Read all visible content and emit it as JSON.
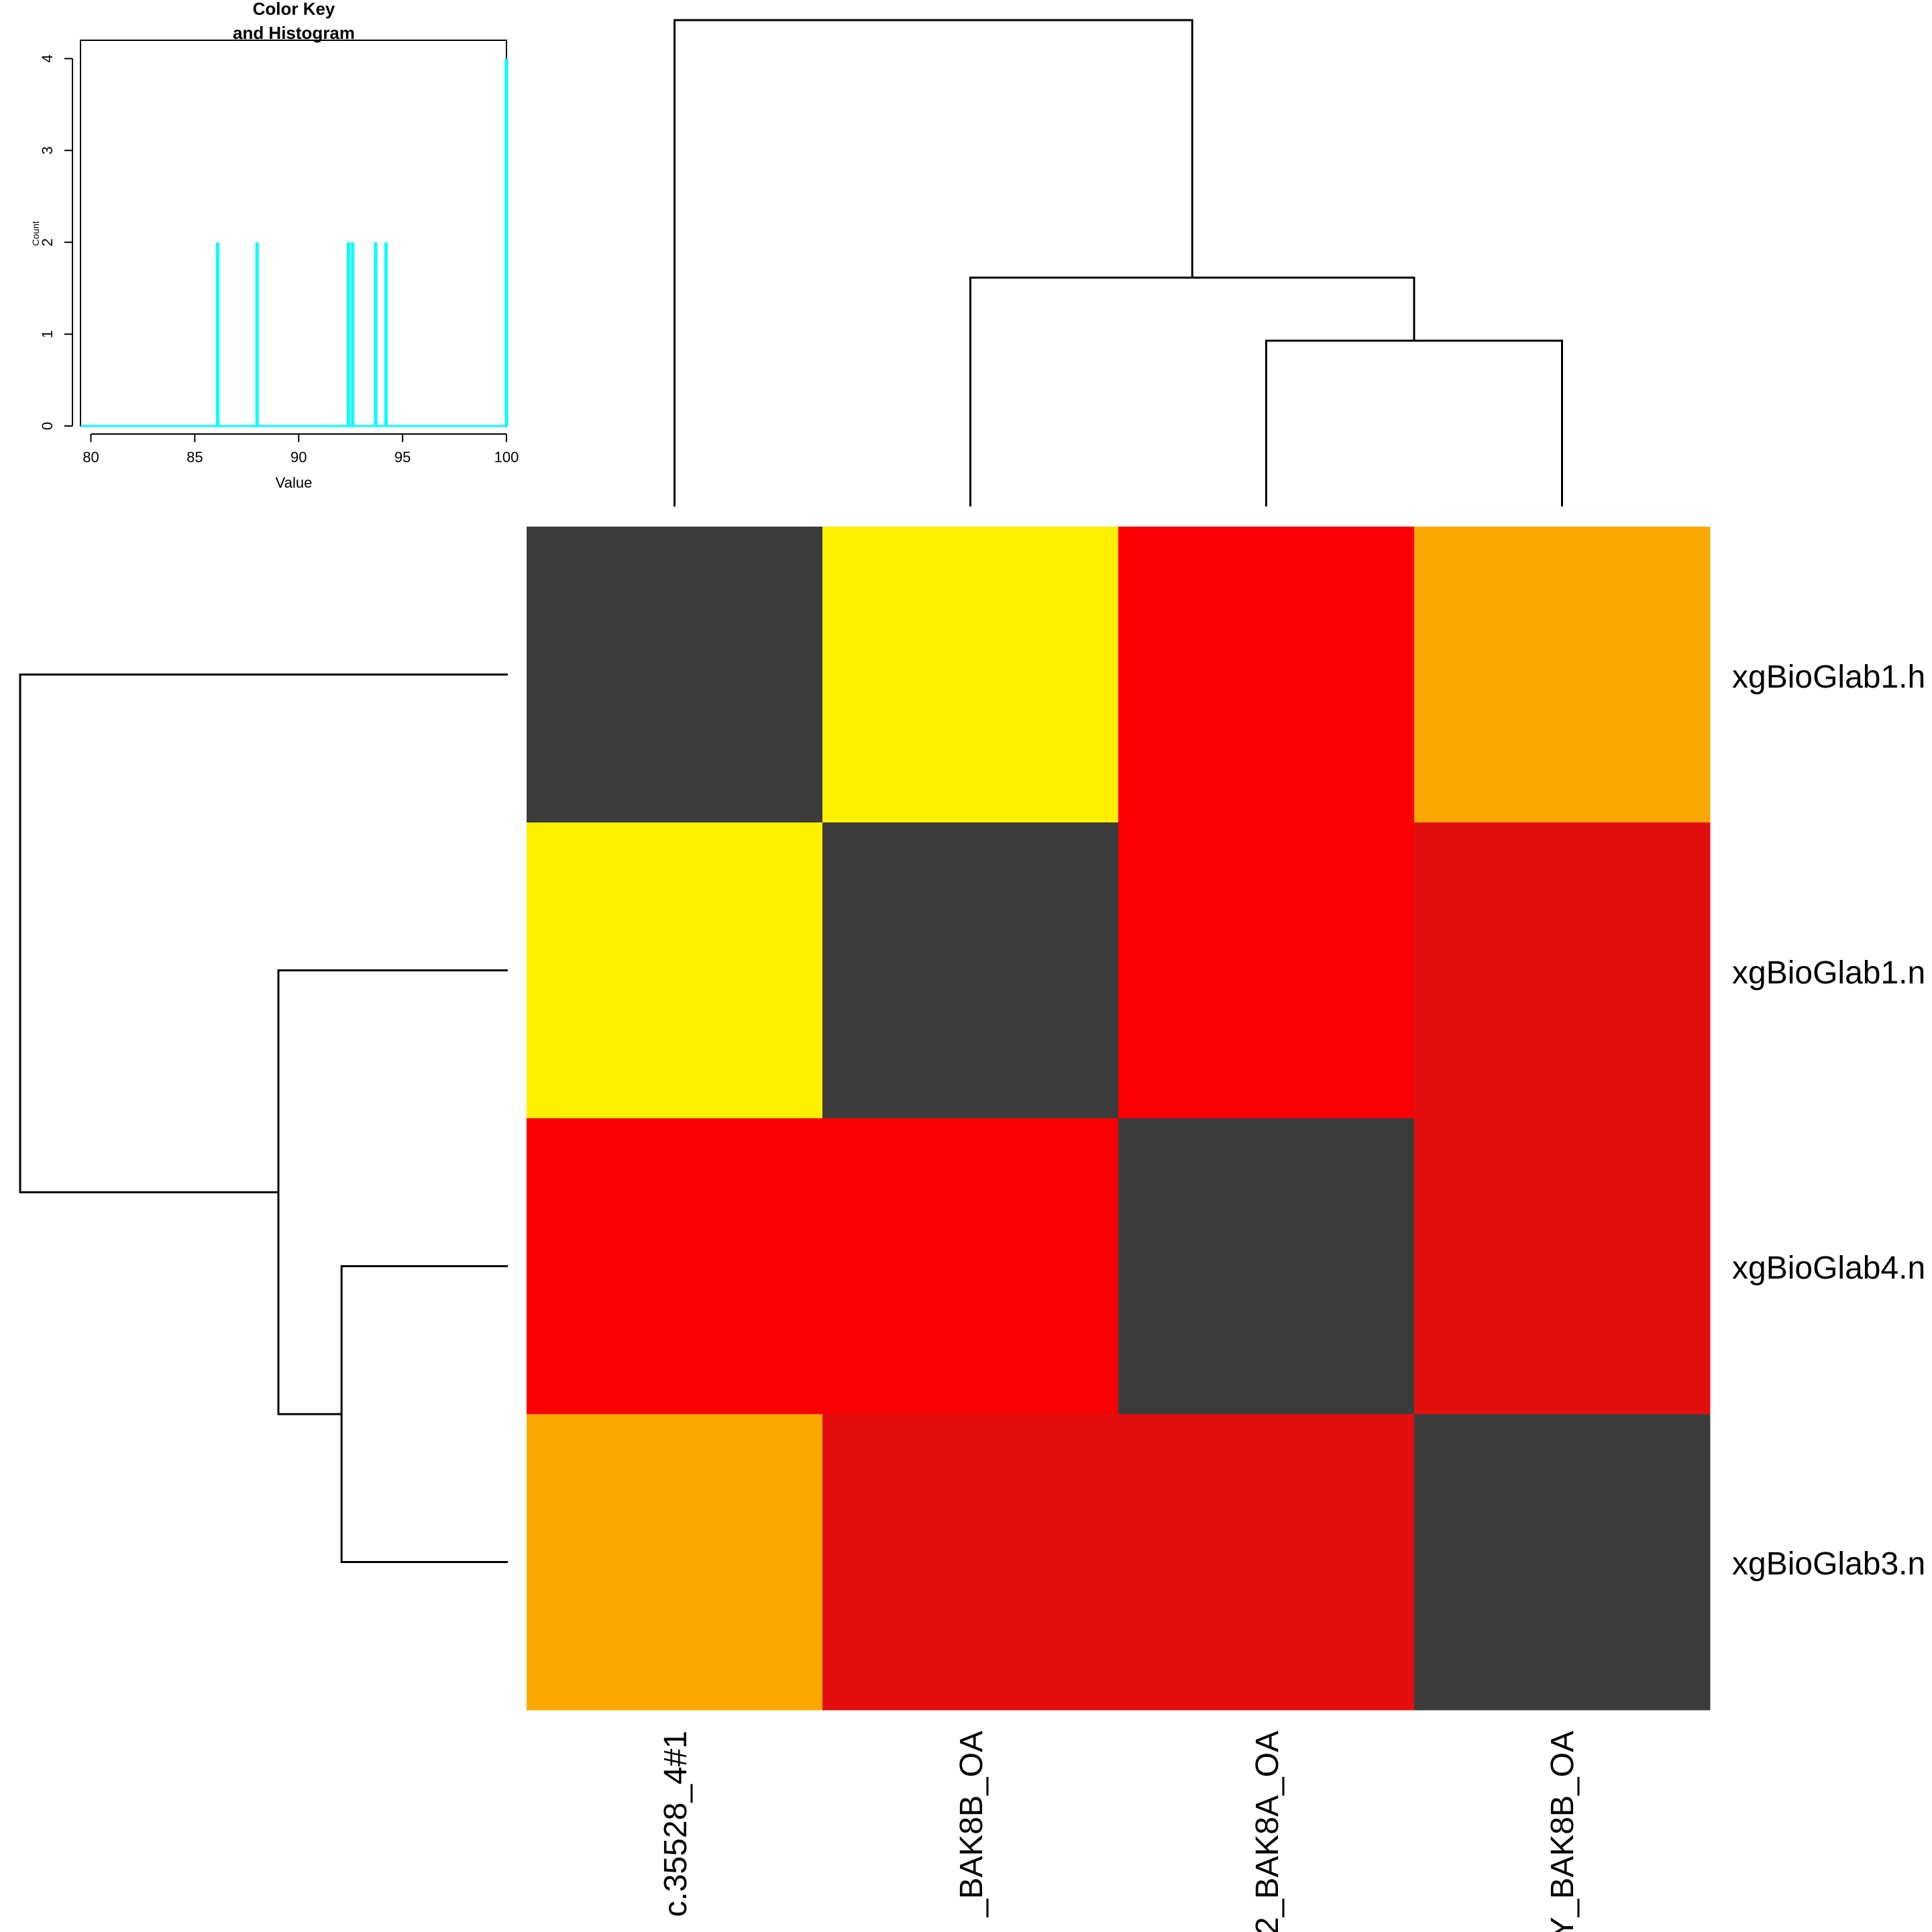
{
  "chart_data": [
    {
      "type": "histogram",
      "title": "Color Key",
      "subtitle": "and Histogram",
      "xlabel": "Value",
      "ylabel": "Count",
      "xlim": [
        79.5,
        100
      ],
      "ylim": [
        0,
        4.2
      ],
      "xticks": [
        80,
        85,
        90,
        95,
        100
      ],
      "yticks": [
        0,
        1,
        2,
        3,
        4
      ],
      "bars": [
        {
          "x": 86.1,
          "count": 2
        },
        {
          "x": 88.0,
          "count": 2
        },
        {
          "x": 92.4,
          "count": 2
        },
        {
          "x": 92.6,
          "count": 2
        },
        {
          "x": 93.7,
          "count": 2
        },
        {
          "x": 94.2,
          "count": 2
        },
        {
          "x": 100.0,
          "count": 4
        }
      ],
      "baseline_range": [
        79.5,
        100
      ],
      "bar_color": "#00ffff"
    },
    {
      "type": "heatmap",
      "row_labels": [
        "xgBioGlab1.h",
        "xgBioGlab1.n",
        "xgBioGlab4.n",
        "xgBioGlab3.n"
      ],
      "col_labels": [
        "c.35528_4#1",
        "_BAK8B_OA",
        "_BAK8A_OA",
        "_BAK8B_OA"
      ],
      "col_label_prefixes": [
        "",
        "",
        "2",
        "Y"
      ],
      "colors": [
        [
          "#3c3c3c",
          "#fff000",
          "#fa0000",
          "#fca800"
        ],
        [
          "#fff000",
          "#3c3c3c",
          "#fa0000",
          "#e30f0f"
        ],
        [
          "#fa0000",
          "#fa0000",
          "#3c3c3c",
          "#e30f0f"
        ],
        [
          "#fca800",
          "#e30f0f",
          "#e30f0f",
          "#3c3c3c"
        ]
      ],
      "values": [
        [
          100,
          86.1,
          92.4,
          88.0
        ],
        [
          86.1,
          100,
          92.6,
          94.2
        ],
        [
          92.4,
          92.6,
          100,
          93.7
        ],
        [
          88.0,
          94.2,
          93.7,
          100
        ]
      ],
      "column_dendrogram": {
        "leaves": [
          0,
          1,
          2,
          3
        ],
        "merges": [
          {
            "left": 2,
            "right": 3,
            "height": 1.5
          },
          {
            "left": 1,
            "right": "2+3",
            "height": 2.07
          },
          {
            "left": 0,
            "right": "1+2+3",
            "height": 4.4
          }
        ],
        "max_height": 4.4
      },
      "row_dendrogram": {
        "leaves": [
          0,
          1,
          2,
          3
        ],
        "merges": [
          {
            "left": 2,
            "right": 3,
            "height": 1.5
          },
          {
            "left": 1,
            "right": "2+3",
            "height": 2.07
          },
          {
            "left": 0,
            "right": "1+2+3",
            "height": 4.4
          }
        ],
        "max_height": 4.4
      }
    }
  ]
}
